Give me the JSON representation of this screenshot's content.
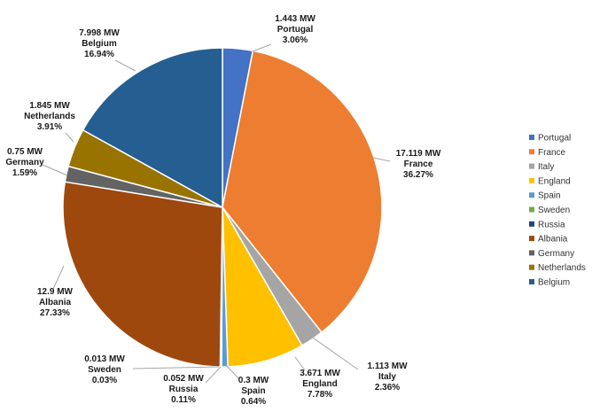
{
  "chart_data": {
    "type": "pie",
    "title": "",
    "unit": "MW",
    "legend_position": "right",
    "slices": [
      {
        "name": "Portugal",
        "value": 1.443,
        "value_label": "1.443 MW",
        "percent_label": "3.06%",
        "color": "#4472C4"
      },
      {
        "name": "France",
        "value": 17.119,
        "value_label": "17.119 MW",
        "percent_label": "36.27%",
        "color": "#ED7D31"
      },
      {
        "name": "Italy",
        "value": 1.113,
        "value_label": "1.113 MW",
        "percent_label": "2.36%",
        "color": "#A5A5A5"
      },
      {
        "name": "England",
        "value": 3.671,
        "value_label": "3.671 MW",
        "percent_label": "7.78%",
        "color": "#FFC000"
      },
      {
        "name": "Spain",
        "value": 0.3,
        "value_label": "0.3 MW",
        "percent_label": "0.64%",
        "color": "#5B9BD5"
      },
      {
        "name": "Sweden",
        "value": 0.013,
        "value_label": "0.013 MW",
        "percent_label": "0.03%",
        "color": "#70AD47"
      },
      {
        "name": "Russia",
        "value": 0.052,
        "value_label": "0.052 MW",
        "percent_label": "0.11%",
        "color": "#264478"
      },
      {
        "name": "Albania",
        "value": 12.9,
        "value_label": "12.9 MW",
        "percent_label": "27.33%",
        "color": "#9E480E"
      },
      {
        "name": "Germany",
        "value": 0.75,
        "value_label": "0.75 MW",
        "percent_label": "1.59%",
        "color": "#636363"
      },
      {
        "name": "Netherlands",
        "value": 1.845,
        "value_label": "1.845 MW",
        "percent_label": "3.91%",
        "color": "#997300"
      },
      {
        "name": "Belgium",
        "value": 7.998,
        "value_label": "7.998 MW",
        "percent_label": "16.94%",
        "color": "#255E91"
      }
    ]
  }
}
